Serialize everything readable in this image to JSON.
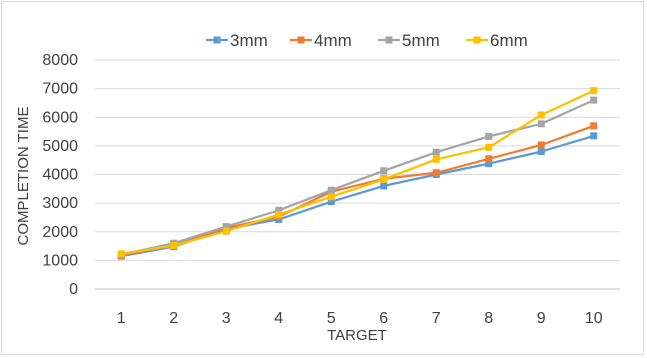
{
  "chart_data": {
    "type": "line",
    "title": "",
    "xlabel": "TARGET",
    "ylabel": "COMPLETION TIME",
    "x": [
      1,
      2,
      3,
      4,
      5,
      6,
      7,
      8,
      9,
      10
    ],
    "ylim": [
      0,
      8000
    ],
    "yticks": [
      0,
      1000,
      2000,
      3000,
      4000,
      5000,
      6000,
      7000,
      8000
    ],
    "grid": true,
    "legend_position": "top",
    "series": [
      {
        "name": "3mm",
        "color": "#5b9bd5",
        "values": [
          1150,
          1480,
          2100,
          2430,
          3050,
          3600,
          4000,
          4380,
          4800,
          5350
        ]
      },
      {
        "name": "4mm",
        "color": "#ed7d31",
        "values": [
          1180,
          1530,
          2130,
          2530,
          3400,
          3850,
          4060,
          4550,
          5030,
          5700
        ]
      },
      {
        "name": "5mm",
        "color": "#a5a5a5",
        "values": [
          1200,
          1600,
          2180,
          2750,
          3450,
          4130,
          4780,
          5330,
          5770,
          6600
        ]
      },
      {
        "name": "6mm",
        "color": "#ffc000",
        "values": [
          1230,
          1520,
          2020,
          2600,
          3220,
          3830,
          4530,
          4950,
          6080,
          6930
        ]
      }
    ]
  }
}
